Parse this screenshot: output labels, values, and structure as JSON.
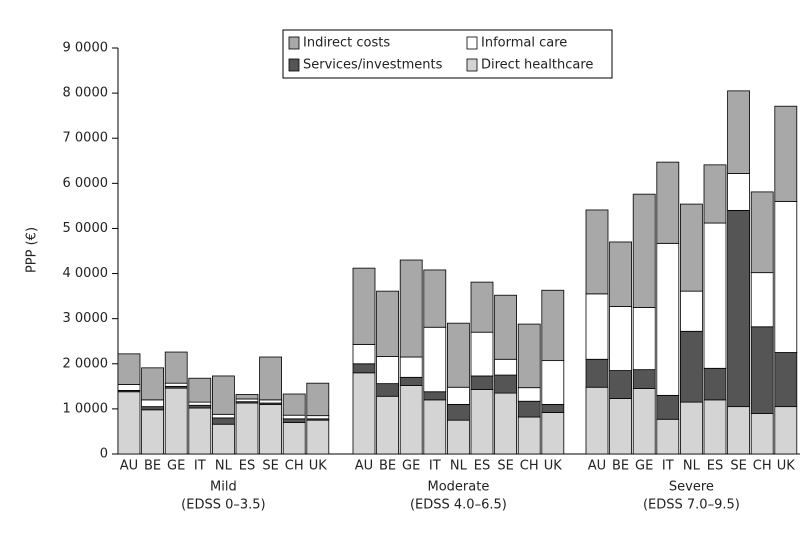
{
  "chart_data": {
    "type": "grouped-stacked-bar",
    "y_label": "PPP (€)",
    "ylim": [
      0,
      90000
    ],
    "yticks": [
      0,
      {
        "value": 10000,
        "label": "1 0000"
      },
      {
        "value": 20000,
        "label": "2 0000"
      },
      {
        "value": 30000,
        "label": "3 0000"
      },
      {
        "value": 40000,
        "label": "4 0000"
      },
      {
        "value": 50000,
        "label": "5 0000"
      },
      {
        "value": 60000,
        "label": "6 0000"
      },
      {
        "value": 70000,
        "label": "7 0000"
      },
      {
        "value": 80000,
        "label": "8 0000"
      },
      {
        "value": 90000,
        "label": "9 0000"
      }
    ],
    "groups": [
      {
        "name": "Mild",
        "label": "(EDSS 0–3.5)",
        "categories": [
          "AU",
          "BE",
          "GE",
          "IT",
          "NL",
          "ES",
          "SE",
          "CH",
          "UK"
        ]
      },
      {
        "name": "Moderate",
        "label": "(EDSS 4.0–6.5)",
        "categories": [
          "AU",
          "BE",
          "GE",
          "IT",
          "NL",
          "ES",
          "SE",
          "CH",
          "UK"
        ]
      },
      {
        "name": "Severe",
        "label": "(EDSS 7.0–9.5)",
        "categories": [
          "AU",
          "BE",
          "GE",
          "IT",
          "NL",
          "ES",
          "SE",
          "CH",
          "UK"
        ]
      }
    ],
    "series": [
      {
        "name": "Direct healthcare",
        "color": "#d4d4d4",
        "values": [
          [
            13800,
            9800,
            14600,
            10200,
            6600,
            11300,
            11000,
            7000,
            7500
          ],
          [
            18000,
            12800,
            15200,
            12000,
            7500,
            14300,
            13500,
            8200,
            9200
          ],
          [
            14800,
            12300,
            14500,
            7700,
            11500,
            12000,
            10500,
            9000,
            10500
          ]
        ]
      },
      {
        "name": "Services/investments",
        "color": "#555555",
        "values": [
          [
            300,
            700,
            400,
            600,
            1400,
            300,
            300,
            800,
            300
          ],
          [
            2000,
            2800,
            1800,
            1800,
            3500,
            3000,
            4000,
            3500,
            1800
          ],
          [
            6200,
            6200,
            4200,
            5300,
            15700,
            7000,
            43500,
            19200,
            12000
          ]
        ]
      },
      {
        "name": "Informal care",
        "color": "#ffffff",
        "values": [
          [
            1300,
            1500,
            700,
            700,
            800,
            600,
            700,
            800,
            700
          ],
          [
            4300,
            6000,
            4500,
            14300,
            3800,
            9700,
            3500,
            3000,
            9700
          ],
          [
            14500,
            14200,
            13800,
            33700,
            8900,
            32200,
            8200,
            12000,
            33500
          ]
        ]
      },
      {
        "name": "Indirect costs",
        "color": "#a8a8a8",
        "values": [
          [
            6800,
            7100,
            6900,
            5300,
            8500,
            1000,
            9500,
            4700,
            7200
          ],
          [
            16900,
            14500,
            21500,
            12700,
            14200,
            11100,
            14200,
            14100,
            15600
          ],
          [
            18600,
            14300,
            25100,
            18000,
            19300,
            12900,
            18300,
            17900,
            21100
          ]
        ]
      }
    ]
  }
}
